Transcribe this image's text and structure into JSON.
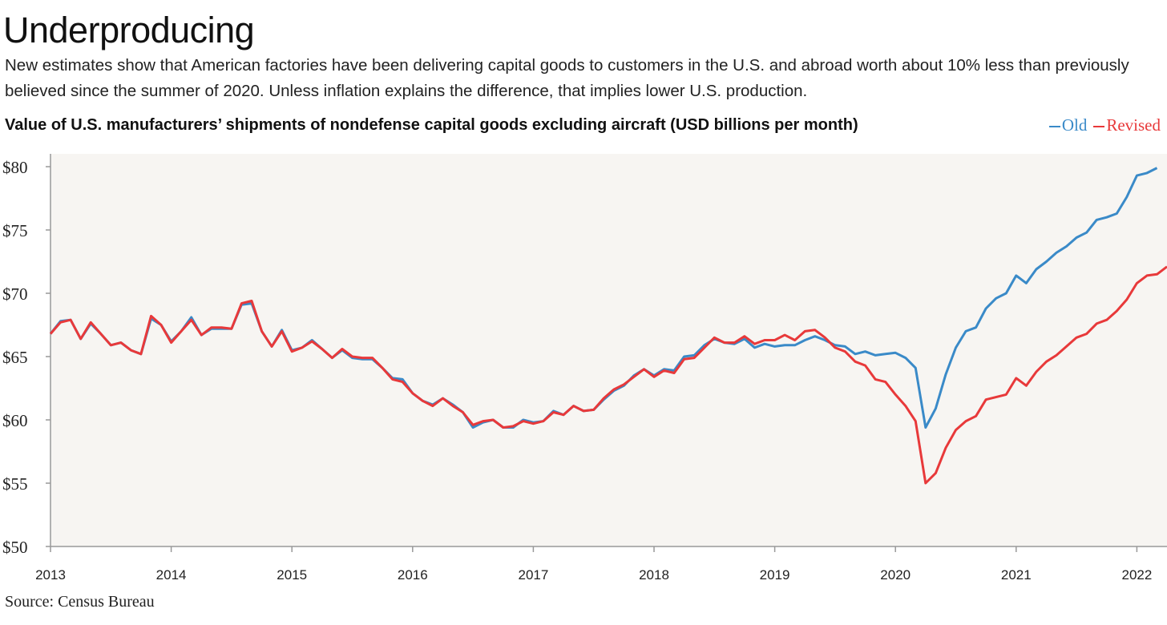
{
  "header": {
    "title": "Underproducing",
    "subtitle": "New estimates show that American factories have been delivering capital goods to customers in the U.S. and abroad worth about 10% less than previously believed since the summer of 2020. Unless inflation explains the difference, that implies lower U.S. production."
  },
  "footer": {
    "source": "Source: Census Bureau"
  },
  "colors": {
    "old": "#3a8ac8",
    "revised": "#e8393a",
    "plot_background": "#f7f5f2",
    "axis": "#999999"
  },
  "chart_data": {
    "type": "line",
    "title": "Value of U.S. manufacturers’ shipments of nondefense capital goods excluding aircraft (USD billions per month)",
    "xlabel": "",
    "ylabel": "",
    "x_start": "2013-01",
    "frequency": "monthly",
    "xlim": [
      "2013-01",
      "2022-04"
    ],
    "ylim": [
      50,
      80
    ],
    "y_ticks": [
      50,
      55,
      60,
      65,
      70,
      75,
      80
    ],
    "y_tick_labels": [
      "$50",
      "$55",
      "$60",
      "$65",
      "$70",
      "$75",
      "$80"
    ],
    "x_ticks": [
      "2013",
      "2014",
      "2015",
      "2016",
      "2017",
      "2018",
      "2019",
      "2020",
      "2021",
      "2022"
    ],
    "grid": false,
    "legend": "top-right",
    "series": [
      {
        "name": "Old",
        "color": "#3a8ac8",
        "values": [
          66.8,
          67.8,
          67.9,
          66.4,
          67.6,
          66.8,
          65.9,
          66.1,
          65.5,
          65.2,
          68.0,
          67.5,
          66.2,
          67.0,
          68.1,
          66.7,
          67.2,
          67.2,
          67.2,
          69.1,
          69.2,
          67.0,
          65.8,
          67.1,
          65.5,
          65.7,
          66.3,
          65.6,
          64.9,
          65.5,
          64.9,
          64.8,
          64.8,
          64.1,
          63.3,
          63.2,
          62.1,
          61.5,
          61.2,
          61.7,
          61.2,
          60.6,
          59.4,
          59.8,
          60.0,
          59.4,
          59.4,
          60.0,
          59.8,
          59.9,
          60.7,
          60.4,
          61.1,
          60.7,
          60.8,
          61.6,
          62.3,
          62.7,
          63.5,
          64.0,
          63.5,
          64.0,
          63.9,
          65.0,
          65.1,
          65.9,
          66.4,
          66.1,
          66.0,
          66.4,
          65.7,
          66.0,
          65.8,
          65.9,
          65.9,
          66.3,
          66.6,
          66.3,
          65.9,
          65.8,
          65.2,
          65.4,
          65.1,
          65.2,
          65.3,
          64.9,
          64.1,
          59.4,
          60.9,
          63.6,
          65.7,
          67.0,
          67.3,
          68.8,
          69.6,
          70.0,
          71.4,
          70.8,
          71.9,
          72.5,
          73.2,
          73.7,
          74.4,
          74.8,
          75.8,
          76.0,
          76.3,
          77.6,
          79.3,
          79.5,
          79.9
        ]
      },
      {
        "name": "Revised",
        "color": "#e8393a",
        "values": [
          66.8,
          67.7,
          67.9,
          66.4,
          67.7,
          66.8,
          65.9,
          66.1,
          65.5,
          65.2,
          68.2,
          67.5,
          66.1,
          67.0,
          67.9,
          66.7,
          67.3,
          67.3,
          67.2,
          69.2,
          69.4,
          67.0,
          65.8,
          67.0,
          65.4,
          65.7,
          66.2,
          65.6,
          64.9,
          65.6,
          65.0,
          64.9,
          64.9,
          64.1,
          63.2,
          63.0,
          62.1,
          61.5,
          61.1,
          61.7,
          61.1,
          60.6,
          59.6,
          59.9,
          60.0,
          59.4,
          59.5,
          59.9,
          59.7,
          59.9,
          60.6,
          60.4,
          61.1,
          60.7,
          60.8,
          61.7,
          62.4,
          62.8,
          63.4,
          64.0,
          63.4,
          63.9,
          63.7,
          64.8,
          64.9,
          65.7,
          66.5,
          66.1,
          66.1,
          66.6,
          66.0,
          66.3,
          66.3,
          66.7,
          66.3,
          67.0,
          67.1,
          66.5,
          65.7,
          65.4,
          64.6,
          64.3,
          63.2,
          63.0,
          62.0,
          61.1,
          59.9,
          55.0,
          55.8,
          57.8,
          59.2,
          59.9,
          60.3,
          61.6,
          61.8,
          62.0,
          63.3,
          62.7,
          63.8,
          64.6,
          65.1,
          65.8,
          66.5,
          66.8,
          67.6,
          67.9,
          68.6,
          69.5,
          70.8,
          71.4,
          71.5,
          72.1
        ]
      }
    ]
  }
}
